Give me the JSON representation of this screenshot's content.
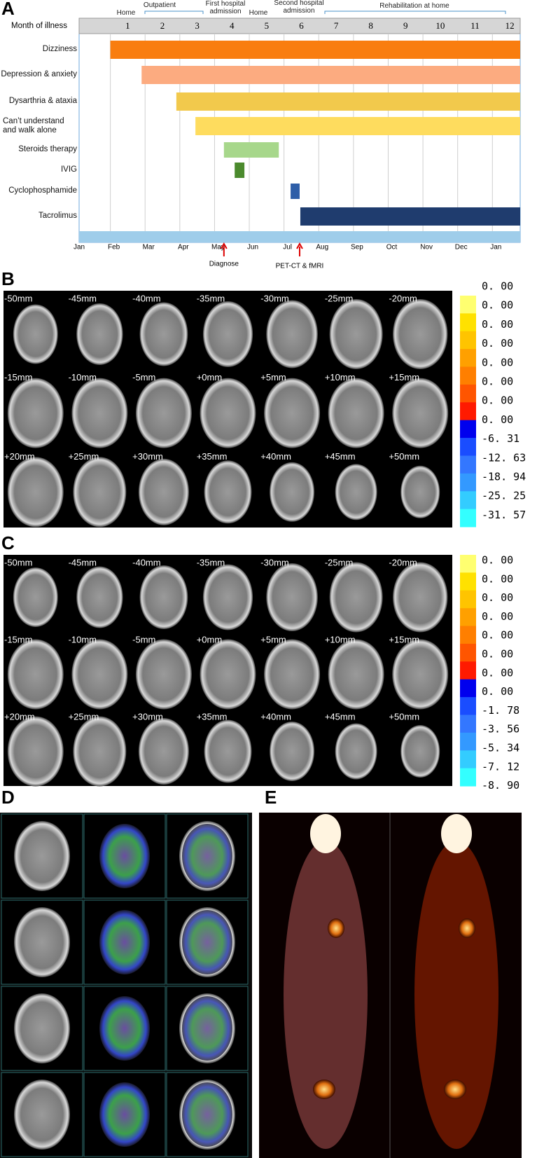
{
  "chart_data": {
    "type": "gantt",
    "panel_label": "A",
    "top_axis_title": "Month of illness",
    "top_ticks": [
      1,
      2,
      3,
      4,
      5,
      6,
      7,
      8,
      9,
      10,
      11,
      12
    ],
    "xlim": [
      0,
      12.8
    ],
    "xticks": [
      {
        "value": 0,
        "label": "Jan"
      },
      {
        "value": 1,
        "label": "Feb"
      },
      {
        "value": 2,
        "label": "Mar"
      },
      {
        "value": 3,
        "label": "Apr"
      },
      {
        "value": 4,
        "label": "May"
      },
      {
        "value": 5,
        "label": "Jun"
      },
      {
        "value": 6,
        "label": "Jul"
      },
      {
        "value": 7,
        "label": "Aug"
      },
      {
        "value": 8,
        "label": "Sep"
      },
      {
        "value": 9,
        "label": "Oct"
      },
      {
        "value": 10,
        "label": "Nov"
      },
      {
        "value": 11,
        "label": "Dec"
      },
      {
        "value": 12,
        "label": "Jan"
      }
    ],
    "grid": true,
    "categories": [
      "Dizziness",
      "Depression & anxiety",
      "Dysarthria & ataxia",
      "Can’t understand and walk alone",
      "Steroids therapy",
      "IVIG",
      "Cyclophosphamide",
      "Tacrolimus"
    ],
    "start": [
      1,
      1.9,
      2.9,
      3.45,
      4.27,
      4.58,
      6.19,
      6.47
    ],
    "end": [
      12.8,
      12.8,
      12.8,
      12.8,
      5.85,
      4.86,
      6.45,
      12.8
    ],
    "colors": [
      "#f97d0f",
      "#fcab80",
      "#f2c94c",
      "#fedc5e",
      "#a7d78b",
      "#4b8a2d",
      "#2e5ea8",
      "#1f3c6e"
    ],
    "phases": [
      "Home",
      "Outpatient",
      "First  hospital admission",
      "Home",
      "Second hospital admission",
      "Rehabilitation at home"
    ],
    "annotations": [
      {
        "label": "Diagnose",
        "x": 4.27
      },
      {
        "label": "PET-CT & fMRI",
        "x": 6.45
      }
    ]
  },
  "panels": {
    "B": {
      "label": "B",
      "slices": [
        "-50mm",
        "-45mm",
        "-40mm",
        "-35mm",
        "-30mm",
        "-25mm",
        "-20mm",
        "-15mm",
        "-10mm",
        "-5mm",
        "+0mm",
        "+5mm",
        "+10mm",
        "+15mm",
        "+20mm",
        "+25mm",
        "+30mm",
        "+35mm",
        "+40mm",
        "+45mm",
        "+50mm"
      ],
      "colorbar_labels": [
        "0. 00",
        "0. 00",
        "0. 00",
        "0. 00",
        "0. 00",
        "0. 00",
        "0. 00",
        "0. 00",
        "-6. 31",
        "-12. 63",
        "-18. 94",
        "-25. 25",
        "-31. 57"
      ],
      "colorbar_colors": [
        "#ffff70",
        "#ffe100",
        "#ffc400",
        "#ffa000",
        "#ff7f00",
        "#ff5500",
        "#ff1a00",
        "#0000ee",
        "#1a4dff",
        "#3377ff",
        "#3399ff",
        "#33ccff",
        "#33ffff"
      ]
    },
    "C": {
      "label": "C",
      "slices": [
        "-50mm",
        "-45mm",
        "-40mm",
        "-35mm",
        "-30mm",
        "-25mm",
        "-20mm",
        "-15mm",
        "-10mm",
        "-5mm",
        "+0mm",
        "+5mm",
        "+10mm",
        "+15mm",
        "+20mm",
        "+25mm",
        "+30mm",
        "+35mm",
        "+40mm",
        "+45mm",
        "+50mm"
      ],
      "colorbar_labels": [
        "0. 00",
        "0. 00",
        "0. 00",
        "0. 00",
        "0. 00",
        "0. 00",
        "0. 00",
        "0. 00",
        "-1. 78",
        "-3. 56",
        "-5. 34",
        "-7. 12",
        "-8. 90"
      ],
      "colorbar_colors": [
        "#ffff70",
        "#ffe100",
        "#ffc400",
        "#ffa000",
        "#ff7f00",
        "#ff5500",
        "#ff1a00",
        "#0000ee",
        "#1a4dff",
        "#3377ff",
        "#3399ff",
        "#33ccff",
        "#33ffff"
      ]
    },
    "D": {
      "label": "D"
    },
    "E": {
      "label": "E"
    }
  }
}
